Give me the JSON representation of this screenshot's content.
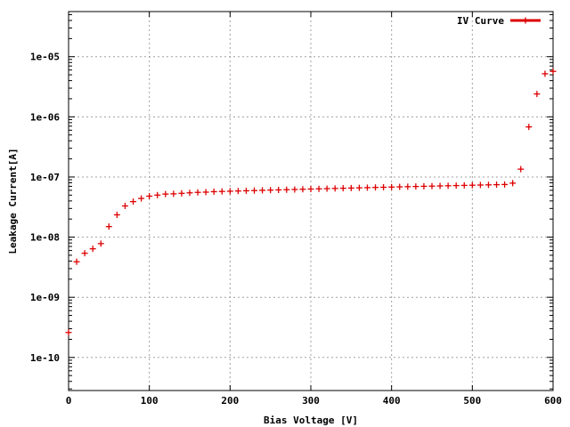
{
  "chart_data": {
    "type": "scatter",
    "xlabel": "Bias Voltage [V]",
    "ylabel": "Leakage Current[A]",
    "xlim": [
      0,
      600
    ],
    "ylim_log10": [
      -10.55,
      -4.25
    ],
    "y_scale": "log",
    "grid": true,
    "legend_position": "top-right",
    "x_ticks": [
      0,
      100,
      200,
      300,
      400,
      500,
      600
    ],
    "x_tick_labels": [
      "0",
      "100",
      "200",
      "300",
      "400",
      "500",
      "600"
    ],
    "y_ticks": [
      1e-10,
      1e-09,
      1e-08,
      1e-07,
      1e-06,
      1e-05
    ],
    "y_tick_labels": [
      "1e-10",
      "1e-09",
      "1e-08",
      "1e-07",
      "1e-06",
      "1e-05"
    ],
    "series": [
      {
        "name": "IV Curve",
        "color": "#dd0000",
        "marker": "plus",
        "x": [
          0,
          10,
          20,
          30,
          40,
          50,
          60,
          70,
          80,
          90,
          100,
          110,
          120,
          130,
          140,
          150,
          160,
          170,
          180,
          190,
          200,
          210,
          220,
          230,
          240,
          250,
          260,
          270,
          280,
          290,
          300,
          310,
          320,
          330,
          340,
          350,
          360,
          370,
          380,
          390,
          400,
          410,
          420,
          430,
          440,
          450,
          460,
          470,
          480,
          490,
          500,
          510,
          520,
          530,
          540,
          550,
          560,
          570,
          580,
          590,
          600
        ],
        "y": [
          2.6e-10,
          3.9e-09,
          5.4e-09,
          6.4e-09,
          7.8e-09,
          1.5e-08,
          2.35e-08,
          3.3e-08,
          3.9e-08,
          4.4e-08,
          4.8e-08,
          5e-08,
          5.2e-08,
          5.25e-08,
          5.35e-08,
          5.45e-08,
          5.55e-08,
          5.6e-08,
          5.7e-08,
          5.75e-08,
          5.8e-08,
          5.85e-08,
          5.9e-08,
          5.95e-08,
          6e-08,
          6.05e-08,
          6.1e-08,
          6.15e-08,
          6.2e-08,
          6.25e-08,
          6.3e-08,
          6.35e-08,
          6.4e-08,
          6.45e-08,
          6.5e-08,
          6.55e-08,
          6.6e-08,
          6.65e-08,
          6.7e-08,
          6.75e-08,
          6.8e-08,
          6.85e-08,
          6.9e-08,
          6.95e-08,
          7e-08,
          7.05e-08,
          7.1e-08,
          7.15e-08,
          7.2e-08,
          7.25e-08,
          7.3e-08,
          7.35e-08,
          7.4e-08,
          7.45e-08,
          7.5e-08,
          7.9e-08,
          1.35e-07,
          6.8e-07,
          2.4e-06,
          5.2e-06,
          5.7e-06
        ]
      }
    ]
  }
}
